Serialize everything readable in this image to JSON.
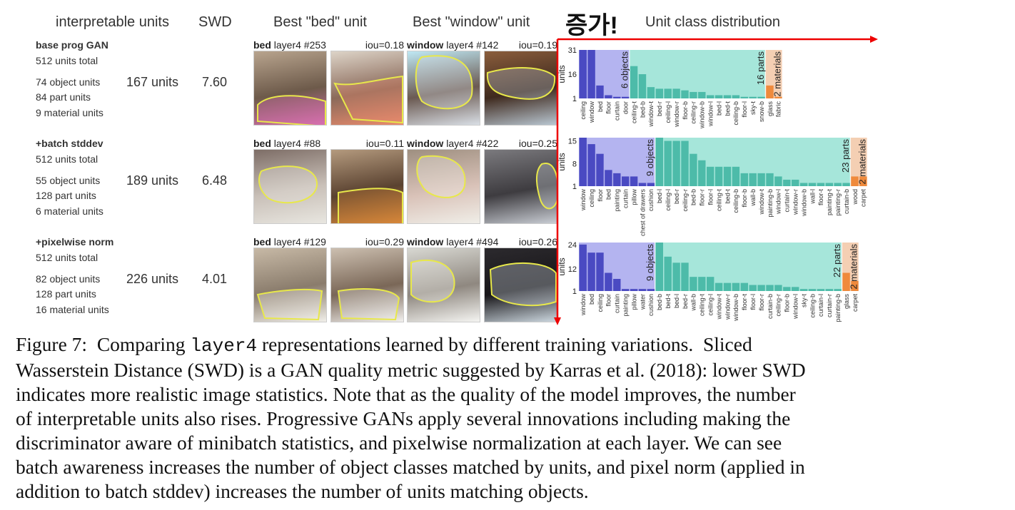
{
  "headers": {
    "interpretable": "interpretable units",
    "swd": "SWD",
    "best_bed": "Best \"bed\" unit",
    "best_window": "Best \"window\" unit",
    "annotation": "증가!",
    "distribution": "Unit class distribution"
  },
  "rows": [
    {
      "name": "base prog GAN",
      "total": "512 units total",
      "objects": "74 object units",
      "parts": "84 part units",
      "materials": "9 material units",
      "units": "167 units",
      "swd": "7.60",
      "bed": {
        "label": "bed",
        "unit": "layer4 #253",
        "iou": "iou=0.18"
      },
      "window": {
        "label": "window",
        "unit": "layer4 #142",
        "iou": "iou=0.19"
      }
    },
    {
      "name": "+batch stddev",
      "total": "512 units total",
      "objects": "55 object units",
      "parts": "128 part units",
      "materials": "6 material units",
      "units": "189 units",
      "swd": "6.48",
      "bed": {
        "label": "bed",
        "unit": "layer4 #88",
        "iou": "iou=0.11"
      },
      "window": {
        "label": "window",
        "unit": "layer4 #422",
        "iou": "iou=0.25"
      }
    },
    {
      "name": "+pixelwise norm",
      "total": "512 units total",
      "objects": "82 object units",
      "parts": "128 part units",
      "materials": "16 material units",
      "units": "226 units",
      "swd": "4.01",
      "bed": {
        "label": "bed",
        "unit": "layer4 #129",
        "iou": "iou=0.29"
      },
      "window": {
        "label": "window",
        "unit": "layer4 #494",
        "iou": "iou=0.26"
      }
    }
  ],
  "colors": {
    "objects_bg": "#b4b4f0",
    "objects_bar": "#4a4ac2",
    "parts_bg": "#a6e6da",
    "parts_bar": "#4dbba9",
    "materials_bg": "#f4cfb3",
    "materials_bar": "#ef8a3c",
    "arrow": "#ee0000",
    "outline": "#e8e84a"
  },
  "chart_data": [
    {
      "type": "bar",
      "ylabel": "units",
      "yticks": [
        1,
        16,
        31
      ],
      "ylim": [
        1,
        31
      ],
      "groups": [
        {
          "label": "6 objects",
          "categories": [
            "ceiling",
            "window",
            "bed",
            "floor",
            "curtain",
            "door"
          ],
          "values": [
            31,
            31,
            9,
            3,
            2,
            2
          ]
        },
        {
          "label": "16 parts",
          "categories": [
            "ceiling-t",
            "bed-b",
            "window-t",
            "bed-r",
            "ceiling-l",
            "window-r",
            "floor-b",
            "ceiling-r",
            "window-b",
            "window-l",
            "bed-l",
            "bed-t",
            "ceiling-b",
            "floor-l",
            "sky-t",
            "snow-b"
          ],
          "values": [
            21,
            16,
            8,
            7,
            7,
            7,
            6,
            5,
            5,
            3,
            3,
            3,
            3,
            2,
            2,
            2
          ]
        },
        {
          "label": "2 materials",
          "categories": [
            "glass",
            "fabric"
          ],
          "values": [
            9,
            2
          ]
        }
      ]
    },
    {
      "type": "bar",
      "ylabel": "units",
      "yticks": [
        1,
        8,
        15
      ],
      "ylim": [
        1,
        16
      ],
      "groups": [
        {
          "label": "9 objects",
          "categories": [
            "window",
            "ceiling",
            "floor",
            "bed",
            "painting",
            "curtain",
            "pillow",
            "chest of drawers",
            "cushion"
          ],
          "values": [
            16,
            14,
            11,
            6,
            5,
            4,
            4,
            2,
            2
          ]
        },
        {
          "label": "23 parts",
          "categories": [
            "bed-l",
            "ceiling-l",
            "bed-r",
            "ceiling-r",
            "bed-b",
            "floor-r",
            "floor-l",
            "ceiling-t",
            "bed-t",
            "ceiling-b",
            "floor-b",
            "wall-b",
            "window-t",
            "painting-b",
            "window-l",
            "curtain-t",
            "window-r",
            "window-b",
            "wall-l",
            "floor-t",
            "painting-t",
            "painting-r",
            "curtain-b"
          ],
          "values": [
            16,
            15,
            15,
            15,
            11,
            9,
            7,
            7,
            7,
            7,
            5,
            5,
            5,
            5,
            4,
            3,
            3,
            2,
            2,
            2,
            2,
            2,
            2
          ]
        },
        {
          "label": "2 materials",
          "categories": [
            "wood",
            "carpet"
          ],
          "values": [
            4,
            4
          ]
        }
      ]
    },
    {
      "type": "bar",
      "ylabel": "units",
      "yticks": [
        1,
        12,
        24
      ],
      "ylim": [
        1,
        25
      ],
      "groups": [
        {
          "label": "9 objects",
          "categories": [
            "window",
            "bed",
            "ceiling",
            "floor",
            "curtain",
            "painting",
            "pillow",
            "water",
            "cushion"
          ],
          "values": [
            24,
            20,
            20,
            10,
            7,
            2,
            2,
            2,
            2
          ]
        },
        {
          "label": "22 parts",
          "categories": [
            "bed-b",
            "bed-t",
            "bed-l",
            "bed-r",
            "wall-b",
            "ceiling-t",
            "ceiling-l",
            "window-t",
            "window-r",
            "window-b",
            "floor-t",
            "floor-l",
            "floor-r",
            "curtain-b",
            "ceiling-r",
            "floor-b",
            "window-l",
            "sky-t",
            "ceiling-b",
            "curtain-l",
            "curtain-r",
            "painting-b"
          ],
          "values": [
            25,
            18,
            15,
            15,
            8,
            8,
            8,
            5,
            5,
            5,
            5,
            4,
            4,
            4,
            4,
            3,
            3,
            2,
            2,
            2,
            2,
            2
          ]
        },
        {
          "label": "2 materials",
          "categories": [
            "glass",
            "carpet"
          ],
          "values": [
            10,
            6
          ]
        }
      ]
    }
  ],
  "caption": {
    "lines": [
      [
        "Figure 7:  Comparing ",
        "layer4",
        " representations learned by different training variations.  Sliced"
      ],
      [
        "Wasserstein Distance (SWD) is a GAN quality metric suggested by Karras et al. (2018): lower SWD"
      ],
      [
        "indicates more realistic image statistics. Note that as the quality of the model improves, the number"
      ],
      [
        "of interpretable units also rises. Progressive GANs apply several innovations including making the"
      ],
      [
        "discriminator aware of minibatch statistics, and pixelwise normalization at each layer. We can see"
      ],
      [
        "batch awareness increases the number of object classes matched by units, and pixel norm (applied in"
      ],
      [
        "addition to batch stddev) increases the number of units matching objects."
      ]
    ]
  }
}
